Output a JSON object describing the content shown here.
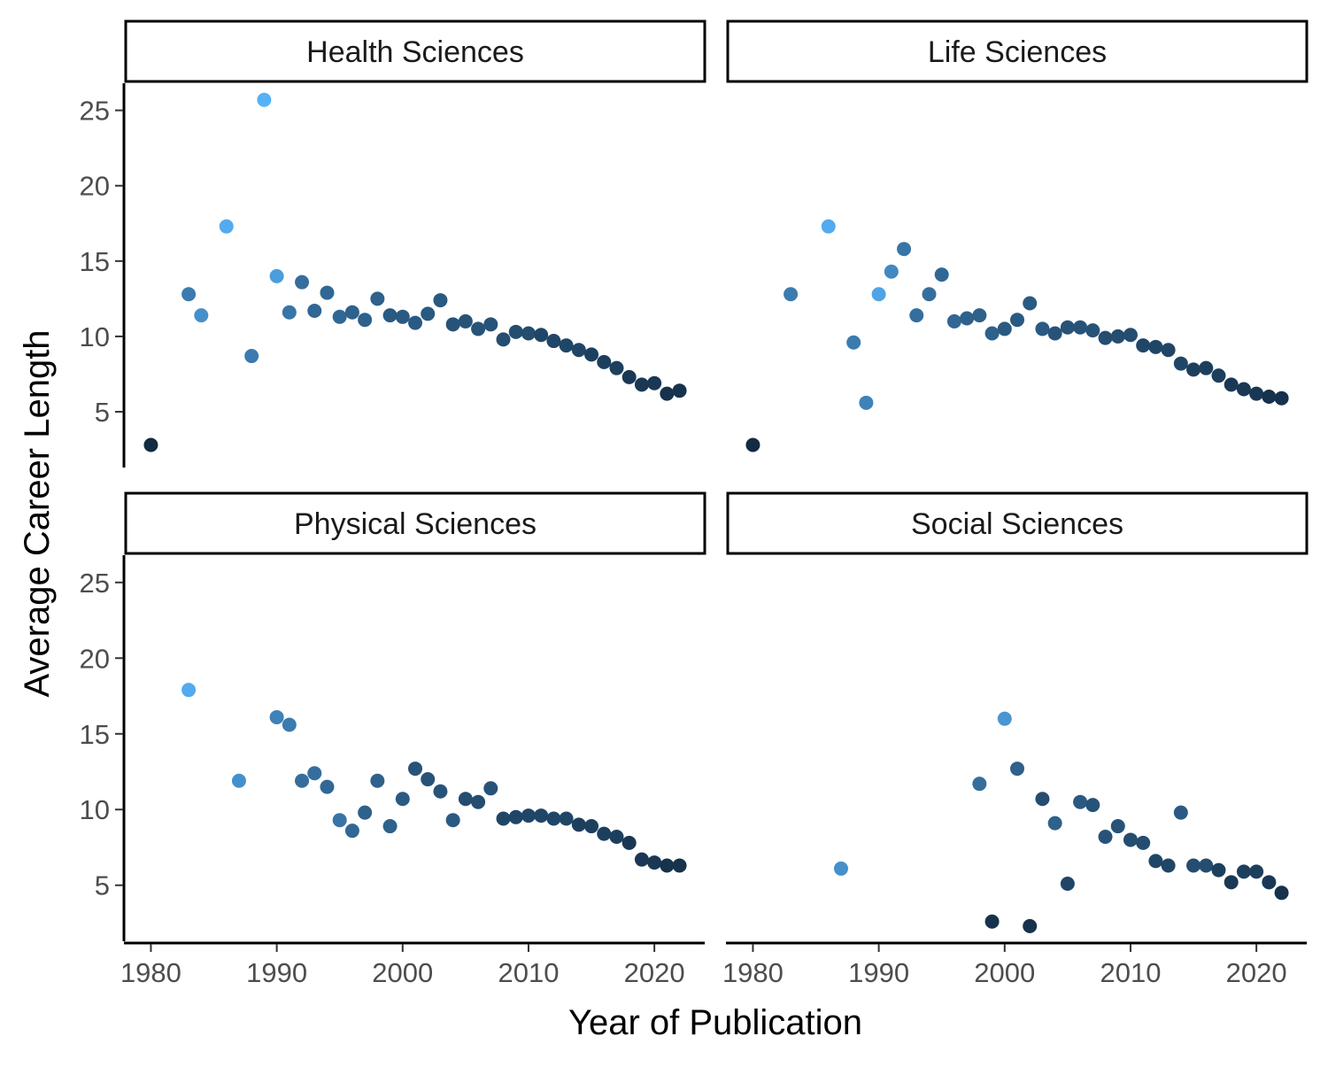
{
  "chart_data": {
    "type": "scatter",
    "xlabel": "Year of Publication",
    "ylabel": "Average Career Length",
    "xlim": [
      1978,
      2024
    ],
    "ylim": [
      1.3,
      26.8
    ],
    "xticks": [
      1980,
      1990,
      2000,
      2010,
      2020
    ],
    "yticks": [
      5,
      10,
      15,
      20,
      25
    ],
    "grid": false,
    "color_scale": {
      "low": "#132B43",
      "high": "#56B1F7",
      "domain": [
        0,
        1
      ]
    },
    "panels": [
      {
        "name": "Health Sciences",
        "points": [
          {
            "x": 1980,
            "y": 2.8,
            "c": 0.0
          },
          {
            "x": 1983,
            "y": 12.8,
            "c": 0.6
          },
          {
            "x": 1984,
            "y": 11.4,
            "c": 0.75
          },
          {
            "x": 1986,
            "y": 17.3,
            "c": 0.95
          },
          {
            "x": 1988,
            "y": 8.7,
            "c": 0.6
          },
          {
            "x": 1989,
            "y": 25.7,
            "c": 1.0
          },
          {
            "x": 1990,
            "y": 14.0,
            "c": 0.85
          },
          {
            "x": 1991,
            "y": 11.6,
            "c": 0.55
          },
          {
            "x": 1992,
            "y": 13.6,
            "c": 0.5
          },
          {
            "x": 1993,
            "y": 11.7,
            "c": 0.45
          },
          {
            "x": 1994,
            "y": 12.9,
            "c": 0.45
          },
          {
            "x": 1995,
            "y": 11.3,
            "c": 0.45
          },
          {
            "x": 1996,
            "y": 11.6,
            "c": 0.4
          },
          {
            "x": 1997,
            "y": 11.1,
            "c": 0.4
          },
          {
            "x": 1998,
            "y": 12.5,
            "c": 0.4
          },
          {
            "x": 1999,
            "y": 11.4,
            "c": 0.35
          },
          {
            "x": 2000,
            "y": 11.3,
            "c": 0.35
          },
          {
            "x": 2001,
            "y": 10.9,
            "c": 0.35
          },
          {
            "x": 2002,
            "y": 11.5,
            "c": 0.35
          },
          {
            "x": 2003,
            "y": 12.4,
            "c": 0.35
          },
          {
            "x": 2004,
            "y": 10.8,
            "c": 0.3
          },
          {
            "x": 2005,
            "y": 11.0,
            "c": 0.3
          },
          {
            "x": 2006,
            "y": 10.5,
            "c": 0.3
          },
          {
            "x": 2007,
            "y": 10.8,
            "c": 0.3
          },
          {
            "x": 2008,
            "y": 9.8,
            "c": 0.25
          },
          {
            "x": 2009,
            "y": 10.3,
            "c": 0.25
          },
          {
            "x": 2010,
            "y": 10.2,
            "c": 0.25
          },
          {
            "x": 2011,
            "y": 10.1,
            "c": 0.2
          },
          {
            "x": 2012,
            "y": 9.7,
            "c": 0.2
          },
          {
            "x": 2013,
            "y": 9.4,
            "c": 0.2
          },
          {
            "x": 2014,
            "y": 9.1,
            "c": 0.2
          },
          {
            "x": 2015,
            "y": 8.8,
            "c": 0.15
          },
          {
            "x": 2016,
            "y": 8.3,
            "c": 0.15
          },
          {
            "x": 2017,
            "y": 7.9,
            "c": 0.15
          },
          {
            "x": 2018,
            "y": 7.3,
            "c": 0.1
          },
          {
            "x": 2019,
            "y": 6.8,
            "c": 0.1
          },
          {
            "x": 2020,
            "y": 6.9,
            "c": 0.1
          },
          {
            "x": 2021,
            "y": 6.2,
            "c": 0.05
          },
          {
            "x": 2022,
            "y": 6.4,
            "c": 0.05
          }
        ]
      },
      {
        "name": "Life Sciences",
        "points": [
          {
            "x": 1980,
            "y": 2.8,
            "c": 0.0
          },
          {
            "x": 1983,
            "y": 12.8,
            "c": 0.6
          },
          {
            "x": 1986,
            "y": 17.3,
            "c": 0.95
          },
          {
            "x": 1988,
            "y": 9.6,
            "c": 0.6
          },
          {
            "x": 1989,
            "y": 5.6,
            "c": 0.65
          },
          {
            "x": 1990,
            "y": 12.8,
            "c": 0.9
          },
          {
            "x": 1991,
            "y": 14.3,
            "c": 0.7
          },
          {
            "x": 1992,
            "y": 15.8,
            "c": 0.55
          },
          {
            "x": 1993,
            "y": 11.4,
            "c": 0.5
          },
          {
            "x": 1994,
            "y": 12.8,
            "c": 0.5
          },
          {
            "x": 1995,
            "y": 14.1,
            "c": 0.45
          },
          {
            "x": 1996,
            "y": 11.0,
            "c": 0.45
          },
          {
            "x": 1997,
            "y": 11.2,
            "c": 0.4
          },
          {
            "x": 1998,
            "y": 11.4,
            "c": 0.4
          },
          {
            "x": 1999,
            "y": 10.2,
            "c": 0.4
          },
          {
            "x": 2000,
            "y": 10.5,
            "c": 0.35
          },
          {
            "x": 2001,
            "y": 11.1,
            "c": 0.35
          },
          {
            "x": 2002,
            "y": 12.2,
            "c": 0.35
          },
          {
            "x": 2003,
            "y": 10.5,
            "c": 0.35
          },
          {
            "x": 2004,
            "y": 10.2,
            "c": 0.3
          },
          {
            "x": 2005,
            "y": 10.6,
            "c": 0.3
          },
          {
            "x": 2006,
            "y": 10.6,
            "c": 0.3
          },
          {
            "x": 2007,
            "y": 10.4,
            "c": 0.3
          },
          {
            "x": 2008,
            "y": 9.9,
            "c": 0.25
          },
          {
            "x": 2009,
            "y": 10.0,
            "c": 0.25
          },
          {
            "x": 2010,
            "y": 10.1,
            "c": 0.25
          },
          {
            "x": 2011,
            "y": 9.4,
            "c": 0.2
          },
          {
            "x": 2012,
            "y": 9.3,
            "c": 0.2
          },
          {
            "x": 2013,
            "y": 9.1,
            "c": 0.2
          },
          {
            "x": 2014,
            "y": 8.2,
            "c": 0.2
          },
          {
            "x": 2015,
            "y": 7.8,
            "c": 0.15
          },
          {
            "x": 2016,
            "y": 7.9,
            "c": 0.15
          },
          {
            "x": 2017,
            "y": 7.4,
            "c": 0.15
          },
          {
            "x": 2018,
            "y": 6.8,
            "c": 0.1
          },
          {
            "x": 2019,
            "y": 6.5,
            "c": 0.1
          },
          {
            "x": 2020,
            "y": 6.2,
            "c": 0.1
          },
          {
            "x": 2021,
            "y": 6.0,
            "c": 0.05
          },
          {
            "x": 2022,
            "y": 5.9,
            "c": 0.05
          }
        ]
      },
      {
        "name": "Physical Sciences",
        "points": [
          {
            "x": 1983,
            "y": 17.9,
            "c": 0.95
          },
          {
            "x": 1987,
            "y": 11.9,
            "c": 0.75
          },
          {
            "x": 1990,
            "y": 16.1,
            "c": 0.65
          },
          {
            "x": 1991,
            "y": 15.6,
            "c": 0.6
          },
          {
            "x": 1992,
            "y": 11.9,
            "c": 0.5
          },
          {
            "x": 1993,
            "y": 12.4,
            "c": 0.5
          },
          {
            "x": 1994,
            "y": 11.5,
            "c": 0.45
          },
          {
            "x": 1995,
            "y": 9.3,
            "c": 0.55
          },
          {
            "x": 1996,
            "y": 8.6,
            "c": 0.45
          },
          {
            "x": 1997,
            "y": 9.8,
            "c": 0.4
          },
          {
            "x": 1998,
            "y": 11.9,
            "c": 0.4
          },
          {
            "x": 1999,
            "y": 8.9,
            "c": 0.4
          },
          {
            "x": 2000,
            "y": 10.7,
            "c": 0.35
          },
          {
            "x": 2001,
            "y": 12.7,
            "c": 0.3
          },
          {
            "x": 2002,
            "y": 12.0,
            "c": 0.3
          },
          {
            "x": 2003,
            "y": 11.2,
            "c": 0.3
          },
          {
            "x": 2004,
            "y": 9.3,
            "c": 0.35
          },
          {
            "x": 2005,
            "y": 10.7,
            "c": 0.25
          },
          {
            "x": 2006,
            "y": 10.5,
            "c": 0.25
          },
          {
            "x": 2007,
            "y": 11.4,
            "c": 0.3
          },
          {
            "x": 2008,
            "y": 9.4,
            "c": 0.2
          },
          {
            "x": 2009,
            "y": 9.5,
            "c": 0.2
          },
          {
            "x": 2010,
            "y": 9.6,
            "c": 0.2
          },
          {
            "x": 2011,
            "y": 9.6,
            "c": 0.2
          },
          {
            "x": 2012,
            "y": 9.4,
            "c": 0.2
          },
          {
            "x": 2013,
            "y": 9.4,
            "c": 0.2
          },
          {
            "x": 2014,
            "y": 9.0,
            "c": 0.15
          },
          {
            "x": 2015,
            "y": 8.9,
            "c": 0.15
          },
          {
            "x": 2016,
            "y": 8.4,
            "c": 0.15
          },
          {
            "x": 2017,
            "y": 8.2,
            "c": 0.15
          },
          {
            "x": 2018,
            "y": 7.8,
            "c": 0.1
          },
          {
            "x": 2019,
            "y": 6.7,
            "c": 0.1
          },
          {
            "x": 2020,
            "y": 6.5,
            "c": 0.1
          },
          {
            "x": 2021,
            "y": 6.3,
            "c": 0.05
          },
          {
            "x": 2022,
            "y": 6.3,
            "c": 0.05
          }
        ]
      },
      {
        "name": "Social Sciences",
        "points": [
          {
            "x": 1987,
            "y": 6.1,
            "c": 0.75
          },
          {
            "x": 1998,
            "y": 11.7,
            "c": 0.5
          },
          {
            "x": 1999,
            "y": 2.6,
            "c": 0.05
          },
          {
            "x": 2000,
            "y": 16.0,
            "c": 0.8
          },
          {
            "x": 2001,
            "y": 12.7,
            "c": 0.4
          },
          {
            "x": 2002,
            "y": 2.3,
            "c": 0.05
          },
          {
            "x": 2003,
            "y": 10.7,
            "c": 0.25
          },
          {
            "x": 2004,
            "y": 9.1,
            "c": 0.4
          },
          {
            "x": 2005,
            "y": 5.1,
            "c": 0.2
          },
          {
            "x": 2006,
            "y": 10.5,
            "c": 0.35
          },
          {
            "x": 2007,
            "y": 10.3,
            "c": 0.3
          },
          {
            "x": 2008,
            "y": 8.2,
            "c": 0.3
          },
          {
            "x": 2009,
            "y": 8.9,
            "c": 0.3
          },
          {
            "x": 2010,
            "y": 8.0,
            "c": 0.25
          },
          {
            "x": 2011,
            "y": 7.8,
            "c": 0.25
          },
          {
            "x": 2012,
            "y": 6.6,
            "c": 0.2
          },
          {
            "x": 2013,
            "y": 6.3,
            "c": 0.2
          },
          {
            "x": 2014,
            "y": 9.8,
            "c": 0.35
          },
          {
            "x": 2015,
            "y": 6.3,
            "c": 0.25
          },
          {
            "x": 2016,
            "y": 6.3,
            "c": 0.25
          },
          {
            "x": 2017,
            "y": 6.0,
            "c": 0.15
          },
          {
            "x": 2018,
            "y": 5.2,
            "c": 0.1
          },
          {
            "x": 2019,
            "y": 5.9,
            "c": 0.15
          },
          {
            "x": 2020,
            "y": 5.9,
            "c": 0.15
          },
          {
            "x": 2021,
            "y": 5.2,
            "c": 0.1
          },
          {
            "x": 2022,
            "y": 4.5,
            "c": 0.05
          }
        ]
      }
    ]
  }
}
